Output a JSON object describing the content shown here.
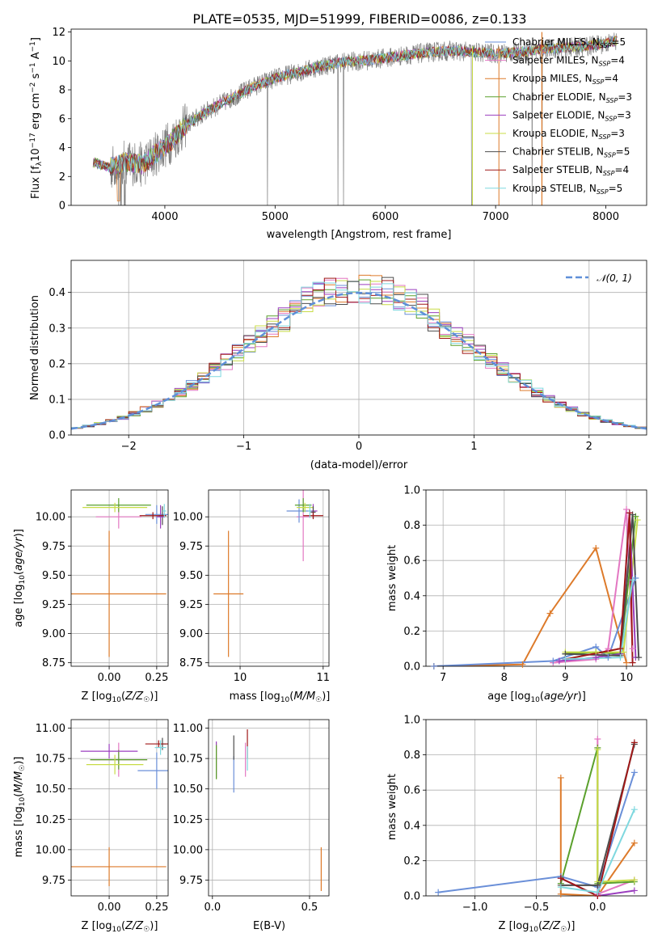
{
  "figure": {
    "title": "PLATE=0535, MJD=51999, FIBERID=0086, z=0.133"
  },
  "chart_data": [
    {
      "id": "spectrum",
      "type": "line",
      "xlabel": "wavelength [Angstrom, rest frame]",
      "ylabel": "Flux [f_λ 10^-17 erg cm^-2 s^-1 A^-1]",
      "xlim": [
        3150,
        8370
      ],
      "ylim": [
        0,
        12.2
      ],
      "xticks": [
        4000,
        5000,
        6000,
        7000,
        8000
      ],
      "yticks": [
        0,
        2,
        4,
        6,
        8,
        10,
        12
      ],
      "grid": false,
      "legend_position": "top-right",
      "series": [
        {
          "name": "Chabrier MILES, N_SSP=5",
          "color": "#6a8fd8"
        },
        {
          "name": "Salpeter MILES, N_SSP=4",
          "color": "#e377c2"
        },
        {
          "name": "Kroupa MILES, N_SSP=4",
          "color": "#dd7a2a"
        },
        {
          "name": "Chabrier ELODIE, N_SSP=3",
          "color": "#5aa02c"
        },
        {
          "name": "Salpeter ELODIE, N_SSP=3",
          "color": "#9b3fbf"
        },
        {
          "name": "Kroupa ELODIE, N_SSP=3",
          "color": "#c8dc46"
        },
        {
          "name": "Chabrier STELIB, N_SSP=5",
          "color": "#4d4d4d"
        },
        {
          "name": "Salpeter STELIB, N_SSP=4",
          "color": "#a01818"
        },
        {
          "name": "Kroupa STELIB, N_SSP=5",
          "color": "#7fd8df"
        }
      ],
      "data_color": "#808080",
      "continuum_points": [
        [
          3350,
          3.0
        ],
        [
          3500,
          2.6
        ],
        [
          3650,
          3.0
        ],
        [
          3800,
          2.8
        ],
        [
          3950,
          3.8
        ],
        [
          4050,
          4.4
        ],
        [
          4200,
          5.6
        ],
        [
          4400,
          6.6
        ],
        [
          4600,
          7.4
        ],
        [
          4800,
          8.2
        ],
        [
          5000,
          8.8
        ],
        [
          5200,
          9.2
        ],
        [
          5400,
          9.6
        ],
        [
          5600,
          9.9
        ],
        [
          5800,
          10.0
        ],
        [
          6000,
          10.2
        ],
        [
          6200,
          10.4
        ],
        [
          6400,
          10.6
        ],
        [
          6600,
          10.7
        ],
        [
          6800,
          10.6
        ],
        [
          7000,
          10.5
        ],
        [
          7200,
          10.6
        ],
        [
          7400,
          10.8
        ],
        [
          7600,
          10.9
        ],
        [
          7800,
          11.0
        ],
        [
          8000,
          11.2
        ],
        [
          8100,
          11.4
        ]
      ],
      "absorption_lines": [
        3580,
        3640,
        4930,
        5570,
        5620,
        7330,
        7420
      ]
    },
    {
      "id": "residuals",
      "type": "bar",
      "xlabel": "(data-model)/error",
      "ylabel": "Normed distribution",
      "xlim": [
        -2.5,
        2.5
      ],
      "ylim": [
        0,
        0.49
      ],
      "xticks": [
        -2,
        -1,
        0,
        1,
        2
      ],
      "yticks": [
        0.0,
        0.1,
        0.2,
        0.3,
        0.4
      ],
      "grid": true,
      "legend_position": "top-right",
      "legend": "𝒩(0, 1)",
      "bin_width": 0.1,
      "normal_color": "#5f8fd8"
    },
    {
      "id": "age-vs-z",
      "type": "scatter",
      "xlabel": "Z [log10(Z/Z_sun)]",
      "ylabel": "age [log10(age/yr)]",
      "xlim": [
        -0.2,
        0.31
      ],
      "ylim": [
        8.72,
        10.23
      ],
      "xticks": [
        0.0,
        0.25
      ],
      "yticks": [
        8.75,
        9.0,
        9.25,
        9.5,
        9.75,
        10.0
      ],
      "grid": true,
      "points": [
        {
          "x": 0.0,
          "y": 9.34,
          "xerr": 0.3,
          "yerr": 0.54,
          "color": "#dd7a2a"
        },
        {
          "x": 0.05,
          "y": 10.0,
          "xerr": 0.12,
          "yerr": 0.1,
          "color": "#e377c2"
        },
        {
          "x": 0.05,
          "y": 10.1,
          "xerr": 0.17,
          "yerr": 0.06,
          "color": "#5aa02c"
        },
        {
          "x": 0.03,
          "y": 10.08,
          "xerr": 0.17,
          "yerr": 0.04,
          "color": "#c8dc46"
        },
        {
          "x": 0.25,
          "y": 10.02,
          "xerr": 0.06,
          "yerr": 0.08,
          "color": "#6a8fd8"
        },
        {
          "x": 0.28,
          "y": 10.01,
          "xerr": 0.02,
          "yerr": 0.08,
          "color": "#4d4d4d"
        },
        {
          "x": 0.27,
          "y": 10.0,
          "xerr": 0.02,
          "yerr": 0.1,
          "color": "#9b3fbf"
        },
        {
          "x": 0.23,
          "y": 10.01,
          "xerr": 0.07,
          "yerr": 0.03,
          "color": "#a01818"
        },
        {
          "x": 0.29,
          "y": 10.05,
          "xerr": 0.01,
          "yerr": 0.06,
          "color": "#7fd8df"
        }
      ]
    },
    {
      "id": "age-vs-mass",
      "type": "scatter",
      "xlabel": "mass [log10(M/M_sun)]",
      "ylabel": "",
      "xlim": [
        9.62,
        11.07
      ],
      "ylim": [
        8.72,
        10.23
      ],
      "xticks": [
        10,
        11
      ],
      "yticks": [
        8.75,
        9.0,
        9.25,
        9.5,
        9.75,
        10.0
      ],
      "grid": true,
      "points": [
        {
          "x": 9.86,
          "y": 9.34,
          "xerr": 0.18,
          "yerr": 0.54,
          "color": "#dd7a2a"
        },
        {
          "x": 10.76,
          "y": 10.0,
          "xerr": 0.08,
          "yerr": 0.38,
          "color": "#e377c2"
        },
        {
          "x": 10.71,
          "y": 10.05,
          "xerr": 0.15,
          "yerr": 0.1,
          "color": "#6a8fd8"
        },
        {
          "x": 10.76,
          "y": 10.1,
          "xerr": 0.1,
          "yerr": 0.06,
          "color": "#5aa02c"
        },
        {
          "x": 10.78,
          "y": 10.08,
          "xerr": 0.1,
          "yerr": 0.04,
          "color": "#c8dc46"
        },
        {
          "x": 10.88,
          "y": 10.05,
          "xerr": 0.05,
          "yerr": 0.06,
          "color": "#9b3fbf"
        },
        {
          "x": 10.88,
          "y": 10.04,
          "xerr": 0.03,
          "yerr": 0.05,
          "color": "#4d4d4d"
        },
        {
          "x": 10.88,
          "y": 10.01,
          "xerr": 0.12,
          "yerr": 0.03,
          "color": "#a01818"
        },
        {
          "x": 10.84,
          "y": 10.05,
          "xerr": 0.02,
          "yerr": 0.06,
          "color": "#7fd8df"
        }
      ]
    },
    {
      "id": "mass-vs-z",
      "type": "scatter",
      "xlabel": "Z [log10(Z/Z_sun)]",
      "ylabel": "mass [log10(M/M_sun)]",
      "xlim": [
        -0.2,
        0.31
      ],
      "ylim": [
        9.62,
        11.07
      ],
      "xticks": [
        0.0,
        0.25
      ],
      "yticks": [
        9.75,
        10.0,
        10.25,
        10.5,
        10.75,
        11.0
      ],
      "grid": true,
      "points": [
        {
          "x": 0.0,
          "y": 9.86,
          "xerr": 0.3,
          "yerr": 0.16,
          "color": "#dd7a2a"
        },
        {
          "x": 0.05,
          "y": 10.74,
          "xerr": 0.15,
          "yerr": 0.14,
          "color": "#e377c2"
        },
        {
          "x": 0.25,
          "y": 10.65,
          "xerr": 0.1,
          "yerr": 0.15,
          "color": "#6a8fd8"
        },
        {
          "x": 0.05,
          "y": 10.74,
          "xerr": 0.15,
          "yerr": 0.08,
          "color": "#5aa02c"
        },
        {
          "x": 0.03,
          "y": 10.7,
          "xerr": 0.15,
          "yerr": 0.08,
          "color": "#c8dc46"
        },
        {
          "x": 0.0,
          "y": 10.81,
          "xerr": 0.15,
          "yerr": 0.06,
          "color": "#9b3fbf"
        },
        {
          "x": 0.28,
          "y": 10.87,
          "xerr": 0.02,
          "yerr": 0.05,
          "color": "#4d4d4d"
        },
        {
          "x": 0.26,
          "y": 10.87,
          "xerr": 0.07,
          "yerr": 0.03,
          "color": "#a01818"
        },
        {
          "x": 0.27,
          "y": 10.84,
          "xerr": 0.03,
          "yerr": 0.06,
          "color": "#7fd8df"
        }
      ]
    },
    {
      "id": "mass-vs-ebv",
      "type": "scatter",
      "xlabel": "E(B-V)",
      "ylabel": "",
      "xlim": [
        -0.02,
        0.6
      ],
      "ylim": [
        9.62,
        11.07
      ],
      "xticks": [
        0.0,
        0.5
      ],
      "yticks": [
        9.75,
        10.0,
        10.25,
        10.5,
        10.75,
        11.0
      ],
      "grid": true,
      "points": [
        {
          "x": 0.02,
          "y": 10.73,
          "yerr": 0.15,
          "color": "#c8dc46"
        },
        {
          "x": 0.02,
          "y": 10.74,
          "yerr": 0.15,
          "color": "#9b3fbf"
        },
        {
          "x": 0.02,
          "y": 10.72,
          "yerr": 0.14,
          "color": "#5aa02c"
        },
        {
          "x": 0.11,
          "y": 10.62,
          "yerr": 0.15,
          "color": "#6a8fd8"
        },
        {
          "x": 0.11,
          "y": 10.84,
          "yerr": 0.1,
          "color": "#4d4d4d"
        },
        {
          "x": 0.17,
          "y": 10.74,
          "yerr": 0.14,
          "color": "#e377c2"
        },
        {
          "x": 0.18,
          "y": 10.87,
          "yerr": 0.12,
          "color": "#a01818"
        },
        {
          "x": 0.18,
          "y": 10.75,
          "yerr": 0.1,
          "color": "#7fd8df"
        },
        {
          "x": 0.56,
          "y": 9.84,
          "yerr": 0.18,
          "color": "#dd7a2a"
        }
      ]
    },
    {
      "id": "weight-vs-age",
      "type": "line",
      "xlabel": "age [log10(age/yr)]",
      "ylabel": "mass weight",
      "xlim": [
        6.72,
        10.33
      ],
      "ylim": [
        0.0,
        1.0
      ],
      "xticks": [
        7,
        8,
        9,
        10
      ],
      "yticks": [
        0.0,
        0.2,
        0.4,
        0.6,
        0.8,
        1.0
      ],
      "grid": true,
      "series": [
        {
          "color": "#dd7a2a",
          "points": [
            [
              6.85,
              0.0
            ],
            [
              8.3,
              0.01
            ],
            [
              8.75,
              0.3
            ],
            [
              9.5,
              0.67
            ],
            [
              10.0,
              0.02
            ]
          ]
        },
        {
          "color": "#e377c2",
          "points": [
            [
              8.8,
              0.02
            ],
            [
              9.5,
              0.04
            ],
            [
              9.7,
              0.1
            ],
            [
              10.0,
              0.89
            ],
            [
              10.1,
              0.1
            ]
          ]
        },
        {
          "color": "#6a8fd8",
          "points": [
            [
              6.85,
              0.0
            ],
            [
              8.8,
              0.03
            ],
            [
              9.5,
              0.11
            ],
            [
              9.7,
              0.05
            ],
            [
              10.15,
              0.5
            ]
          ]
        },
        {
          "color": "#5aa02c",
          "points": [
            [
              9.0,
              0.07
            ],
            [
              9.5,
              0.08
            ],
            [
              9.9,
              0.07
            ],
            [
              10.15,
              0.85
            ]
          ]
        },
        {
          "color": "#c8dc46",
          "points": [
            [
              9.0,
              0.08
            ],
            [
              9.5,
              0.08
            ],
            [
              9.95,
              0.08
            ],
            [
              10.18,
              0.83
            ]
          ]
        },
        {
          "color": "#9b3fbf",
          "points": [
            [
              8.9,
              0.03
            ],
            [
              9.5,
              0.05
            ],
            [
              9.9,
              0.07
            ],
            [
              10.05,
              0.87
            ],
            [
              10.15,
              0.05
            ]
          ]
        },
        {
          "color": "#4d4d4d",
          "points": [
            [
              9.0,
              0.07
            ],
            [
              9.9,
              0.06
            ],
            [
              10.1,
              0.86
            ],
            [
              10.2,
              0.05
            ]
          ]
        },
        {
          "color": "#a01818",
          "points": [
            [
              9.0,
              0.04
            ],
            [
              9.9,
              0.1
            ],
            [
              10.05,
              0.87
            ],
            [
              10.1,
              0.02
            ]
          ]
        },
        {
          "color": "#7fd8df",
          "points": [
            [
              9.0,
              0.04
            ],
            [
              9.9,
              0.05
            ],
            [
              10.1,
              0.49
            ]
          ]
        }
      ]
    },
    {
      "id": "weight-vs-z",
      "type": "line",
      "xlabel": "Z [log10(Z/Z_sun)]",
      "ylabel": "mass weight",
      "xlim": [
        -1.4,
        0.4
      ],
      "ylim": [
        0.0,
        1.0
      ],
      "xticks": [
        -1.0,
        -0.5,
        0.0
      ],
      "yticks": [
        0.0,
        0.2,
        0.4,
        0.6,
        0.8,
        1.0
      ],
      "grid": true,
      "series": [
        {
          "color": "#6a8fd8",
          "points": [
            [
              -1.3,
              0.02
            ],
            [
              -0.3,
              0.11
            ],
            [
              0.0,
              0.05
            ],
            [
              0.3,
              0.7
            ]
          ]
        },
        {
          "color": "#dd7a2a",
          "points": [
            [
              -0.3,
              0.67
            ],
            [
              -0.3,
              0.01
            ],
            [
              0.0,
              0.0
            ],
            [
              0.3,
              0.3
            ]
          ]
        },
        {
          "color": "#e377c2",
          "points": [
            [
              0.0,
              0.89
            ],
            [
              0.0,
              0.01
            ],
            [
              0.3,
              0.09
            ]
          ]
        },
        {
          "color": "#5aa02c",
          "points": [
            [
              -0.3,
              0.07
            ],
            [
              0.0,
              0.84
            ],
            [
              0.0,
              0.07
            ],
            [
              0.3,
              0.08
            ]
          ]
        },
        {
          "color": "#c8dc46",
          "points": [
            [
              0.0,
              0.83
            ],
            [
              0.0,
              0.08
            ],
            [
              0.3,
              0.09
            ]
          ]
        },
        {
          "color": "#9b3fbf",
          "points": [
            [
              -0.3,
              0.1
            ],
            [
              0.0,
              0.0
            ],
            [
              0.3,
              0.03
            ]
          ]
        },
        {
          "color": "#4d4d4d",
          "points": [
            [
              -0.3,
              0.06
            ],
            [
              0.0,
              0.06
            ],
            [
              0.3,
              0.86
            ]
          ]
        },
        {
          "color": "#a01818",
          "points": [
            [
              -0.3,
              0.1
            ],
            [
              0.0,
              0.0
            ],
            [
              0.3,
              0.87
            ]
          ]
        },
        {
          "color": "#7fd8df",
          "points": [
            [
              -0.3,
              0.05
            ],
            [
              0.0,
              0.02
            ],
            [
              0.3,
              0.49
            ]
          ]
        }
      ]
    }
  ]
}
